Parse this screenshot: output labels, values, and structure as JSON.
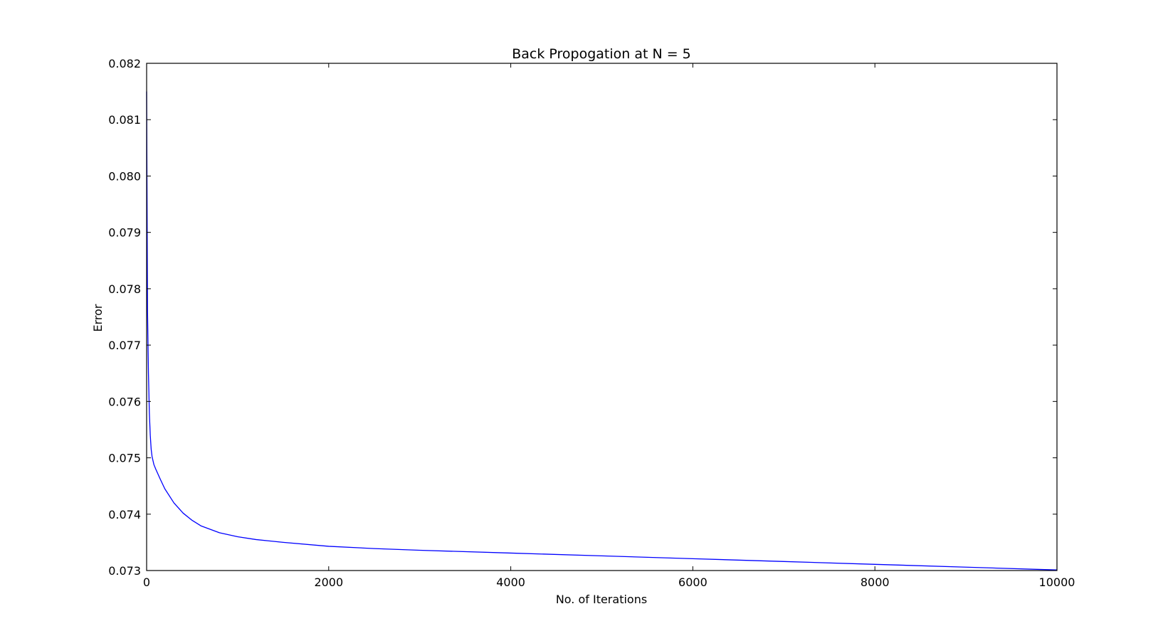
{
  "chart_data": {
    "type": "line",
    "title": "Back Propogation at N = 5",
    "xlabel": "No. of Iterations",
    "ylabel": "Error",
    "xlim": [
      0,
      10000
    ],
    "ylim": [
      0.073,
      0.082
    ],
    "xticks": [
      "0",
      "2000",
      "4000",
      "6000",
      "8000",
      "10000"
    ],
    "yticks": [
      "0.073",
      "0.074",
      "0.075",
      "0.076",
      "0.077",
      "0.078",
      "0.079",
      "0.080",
      "0.081",
      "0.082"
    ],
    "grid": false,
    "line_color": "#0000ff",
    "series": [
      {
        "x": [
          0,
          5,
          10,
          20,
          30,
          40,
          50,
          60,
          80,
          100,
          150,
          200,
          300,
          400,
          500,
          600,
          800,
          1000,
          1200,
          1500,
          2000,
          2500,
          3000,
          4000,
          5000,
          6000,
          7000,
          8000,
          9000,
          10000
        ],
        "values": [
          0.0815,
          0.0795,
          0.0776,
          0.0765,
          0.0758,
          0.0754,
          0.07515,
          0.07502,
          0.07488,
          0.0748,
          0.07462,
          0.07445,
          0.0742,
          0.07402,
          0.07389,
          0.07379,
          0.07367,
          0.0736,
          0.07355,
          0.0735,
          0.07343,
          0.07339,
          0.07336,
          0.07331,
          0.07326,
          0.07321,
          0.07316,
          0.07311,
          0.07306,
          0.07301
        ]
      }
    ]
  }
}
